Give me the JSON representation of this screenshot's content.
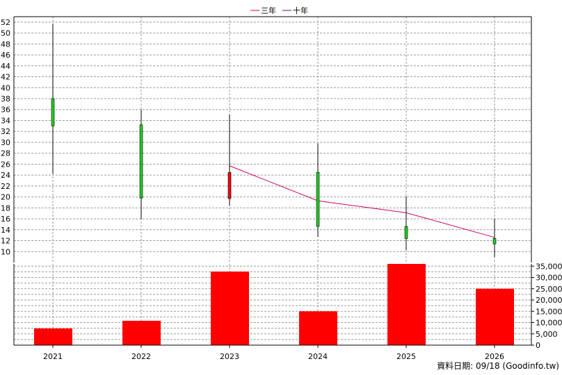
{
  "legend": [
    {
      "label": "三年",
      "color": "#cc0066"
    },
    {
      "label": "十年",
      "color": "#660099"
    }
  ],
  "footer": "資料日期: 09/18  (Goodinfo.tw)",
  "chart_data": [
    {
      "type": "candlestick",
      "x": [
        "2021",
        "2022",
        "2023",
        "2024",
        "2025",
        "2026"
      ],
      "ylim": [
        8,
        53
      ],
      "yticks": [
        10,
        12,
        14,
        16,
        18,
        20,
        22,
        24,
        26,
        28,
        30,
        32,
        34,
        36,
        38,
        40,
        42,
        44,
        46,
        48,
        50,
        52
      ],
      "ohlc": [
        {
          "open": 33.0,
          "high": 51.7,
          "low": 24.2,
          "close": 38.0,
          "color": "#22cc22"
        },
        {
          "open": 19.8,
          "high": 36.0,
          "low": 15.9,
          "close": 33.2,
          "color": "#22cc22"
        },
        {
          "open": 24.5,
          "high": 35.1,
          "low": 18.4,
          "close": 19.7,
          "color": "#ff0000"
        },
        {
          "open": 14.6,
          "high": 29.8,
          "low": 12.7,
          "close": 24.5,
          "color": "#22cc22"
        },
        {
          "open": 12.4,
          "high": 20.1,
          "low": 10.3,
          "close": 14.6,
          "color": "#22cc22"
        },
        {
          "open": 11.4,
          "high": 16.0,
          "low": 9.0,
          "close": 12.4,
          "color": "#22cc22"
        }
      ],
      "series": [
        {
          "name": "三年",
          "color": "#cc0066",
          "values": [
            null,
            null,
            25.7,
            19.3,
            17.1,
            12.6
          ]
        }
      ],
      "grid": true
    },
    {
      "type": "bar",
      "categories": [
        "2021",
        "2022",
        "2023",
        "2024",
        "2025",
        "2026"
      ],
      "values": [
        7400,
        10800,
        32600,
        15000,
        36000,
        25000
      ],
      "color": "#ff0000",
      "ylim": [
        0,
        36000
      ],
      "yticks": [
        "0",
        "5,000",
        "10,000",
        "15,000",
        "20,000",
        "25,000",
        "30,000",
        "35,000"
      ],
      "grid": true
    }
  ]
}
